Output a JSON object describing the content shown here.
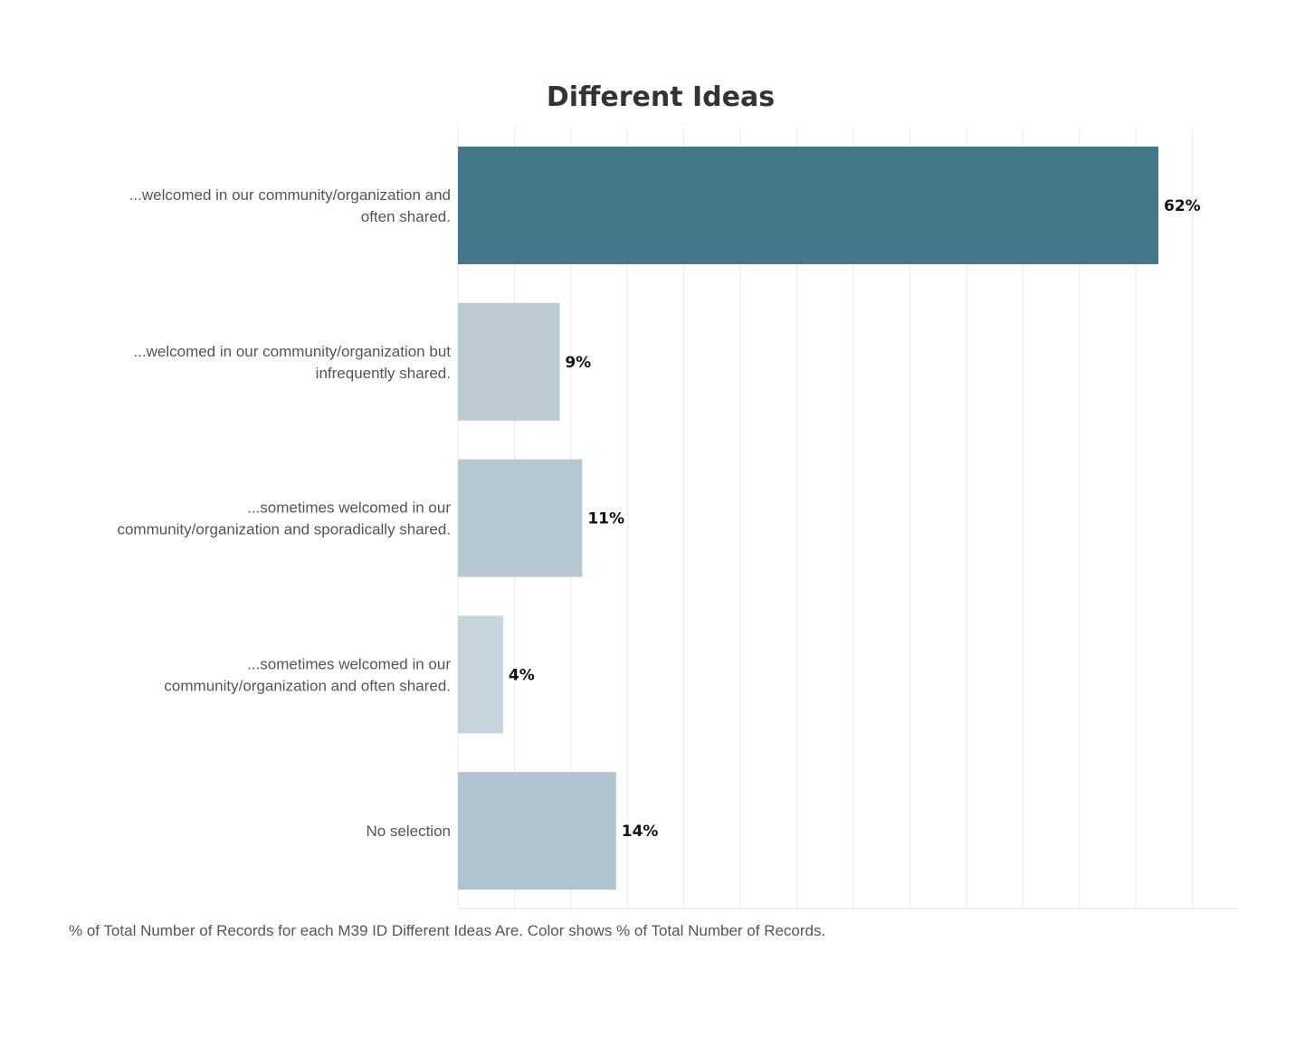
{
  "chart_data": {
    "type": "bar",
    "orientation": "horizontal",
    "title": "Different Ideas",
    "categories": [
      [
        "...welcomed in our community/organization and",
        "often shared."
      ],
      [
        "...welcomed in our community/organization but",
        "infrequently shared."
      ],
      [
        "...sometimes welcomed in our",
        "community/organization and sporadically shared."
      ],
      [
        "...sometimes welcomed in our",
        "community/organization and often shared."
      ],
      [
        "No selection"
      ]
    ],
    "values": [
      62,
      9,
      11,
      4,
      14
    ],
    "value_labels": [
      "62%",
      "9%",
      "11%",
      "4%",
      "14%"
    ],
    "colors": [
      "#43778a",
      "#bacbd4",
      "#b6c9d2",
      "#c6d5dc",
      "#afc4ce"
    ],
    "xlim": [
      0,
      69
    ],
    "grid_step": 5,
    "grid": true,
    "caption": "% of Total Number of Records for each M39 ID Different Ideas Are.  Color shows % of Total Number of Records."
  }
}
